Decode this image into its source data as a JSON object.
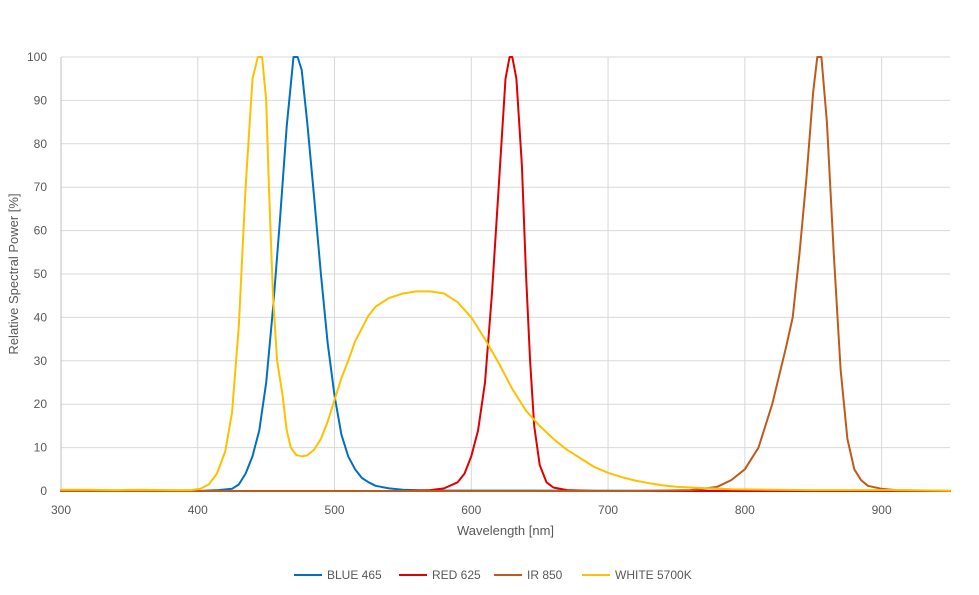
{
  "chart_data": {
    "type": "line",
    "title": "",
    "xlabel": "Wavelength [nm]",
    "ylabel": "Relative Spectral Power [%]",
    "xlim": [
      300,
      950
    ],
    "ylim": [
      0,
      100
    ],
    "x_ticks": [
      300,
      400,
      500,
      600,
      700,
      800,
      900
    ],
    "y_ticks": [
      0,
      10,
      20,
      30,
      40,
      50,
      60,
      70,
      80,
      90,
      100
    ],
    "grid": true,
    "legend_position": "bottom",
    "series": [
      {
        "name": "BLUE 465",
        "color": "#0070C0",
        "points": [
          [
            300,
            0
          ],
          [
            400,
            0
          ],
          [
            415,
            0.2
          ],
          [
            425,
            0.5
          ],
          [
            430,
            1.5
          ],
          [
            435,
            4
          ],
          [
            440,
            8
          ],
          [
            445,
            14
          ],
          [
            450,
            25
          ],
          [
            455,
            42
          ],
          [
            460,
            62
          ],
          [
            465,
            84
          ],
          [
            470,
            100
          ],
          [
            473,
            100
          ],
          [
            476,
            97
          ],
          [
            480,
            85
          ],
          [
            485,
            68
          ],
          [
            490,
            50
          ],
          [
            495,
            34
          ],
          [
            500,
            22
          ],
          [
            505,
            13
          ],
          [
            510,
            8
          ],
          [
            515,
            5
          ],
          [
            520,
            3
          ],
          [
            525,
            2
          ],
          [
            530,
            1.2
          ],
          [
            540,
            0.6
          ],
          [
            550,
            0.3
          ],
          [
            570,
            0.1
          ],
          [
            950,
            0
          ]
        ]
      },
      {
        "name": "RED 625",
        "color": "#E00000",
        "points": [
          [
            300,
            0
          ],
          [
            550,
            0
          ],
          [
            570,
            0.2
          ],
          [
            580,
            0.6
          ],
          [
            590,
            2
          ],
          [
            595,
            4
          ],
          [
            600,
            8
          ],
          [
            605,
            14
          ],
          [
            610,
            25
          ],
          [
            615,
            45
          ],
          [
            620,
            70
          ],
          [
            625,
            95
          ],
          [
            628,
            100
          ],
          [
            630,
            100
          ],
          [
            633,
            95
          ],
          [
            637,
            75
          ],
          [
            640,
            50
          ],
          [
            643,
            30
          ],
          [
            646,
            15
          ],
          [
            650,
            6
          ],
          [
            655,
            2
          ],
          [
            660,
            0.8
          ],
          [
            670,
            0.2
          ],
          [
            690,
            0
          ],
          [
            950,
            0
          ]
        ]
      },
      {
        "name": "IR 850",
        "color": "#C05A1A",
        "points": [
          [
            300,
            0
          ],
          [
            720,
            0
          ],
          [
            760,
            0.2
          ],
          [
            770,
            0.5
          ],
          [
            780,
            1
          ],
          [
            790,
            2.5
          ],
          [
            800,
            5
          ],
          [
            810,
            10
          ],
          [
            820,
            20
          ],
          [
            830,
            33
          ],
          [
            835,
            40
          ],
          [
            840,
            55
          ],
          [
            845,
            72
          ],
          [
            850,
            92
          ],
          [
            853,
            100
          ],
          [
            856,
            100
          ],
          [
            860,
            85
          ],
          [
            865,
            55
          ],
          [
            870,
            28
          ],
          [
            875,
            12
          ],
          [
            880,
            5
          ],
          [
            885,
            2.5
          ],
          [
            890,
            1.2
          ],
          [
            900,
            0.5
          ],
          [
            910,
            0.2
          ],
          [
            950,
            0
          ]
        ]
      },
      {
        "name": "WHITE 5700K",
        "color": "#FFC000",
        "points": [
          [
            300,
            0.3
          ],
          [
            320,
            0.3
          ],
          [
            340,
            0.2
          ],
          [
            360,
            0.3
          ],
          [
            380,
            0.2
          ],
          [
            395,
            0.2
          ],
          [
            402,
            0.5
          ],
          [
            408,
            1.5
          ],
          [
            414,
            4
          ],
          [
            420,
            9
          ],
          [
            425,
            18
          ],
          [
            430,
            38
          ],
          [
            435,
            70
          ],
          [
            440,
            95
          ],
          [
            444,
            100
          ],
          [
            447,
            100
          ],
          [
            450,
            90
          ],
          [
            452,
            70
          ],
          [
            455,
            45
          ],
          [
            458,
            30
          ],
          [
            462,
            22
          ],
          [
            465,
            14
          ],
          [
            468,
            10
          ],
          [
            472,
            8.3
          ],
          [
            476,
            8
          ],
          [
            480,
            8.2
          ],
          [
            485,
            9.5
          ],
          [
            490,
            12
          ],
          [
            495,
            16
          ],
          [
            500,
            21
          ],
          [
            505,
            26
          ],
          [
            510,
            30
          ],
          [
            515,
            34.5
          ],
          [
            520,
            37.5
          ],
          [
            525,
            40.5
          ],
          [
            530,
            42.5
          ],
          [
            540,
            44.5
          ],
          [
            550,
            45.5
          ],
          [
            560,
            46
          ],
          [
            570,
            46
          ],
          [
            580,
            45.5
          ],
          [
            590,
            43.5
          ],
          [
            600,
            40
          ],
          [
            610,
            35
          ],
          [
            620,
            29.5
          ],
          [
            630,
            23.5
          ],
          [
            640,
            18.5
          ],
          [
            650,
            15
          ],
          [
            660,
            12
          ],
          [
            670,
            9.5
          ],
          [
            680,
            7.5
          ],
          [
            690,
            5.5
          ],
          [
            700,
            4.2
          ],
          [
            710,
            3.2
          ],
          [
            720,
            2.4
          ],
          [
            730,
            1.8
          ],
          [
            740,
            1.3
          ],
          [
            750,
            1
          ],
          [
            760,
            0.8
          ],
          [
            775,
            0.6
          ],
          [
            790,
            0.4
          ],
          [
            820,
            0.3
          ],
          [
            850,
            0.2
          ],
          [
            900,
            0.2
          ],
          [
            950,
            0.1
          ]
        ]
      }
    ]
  }
}
